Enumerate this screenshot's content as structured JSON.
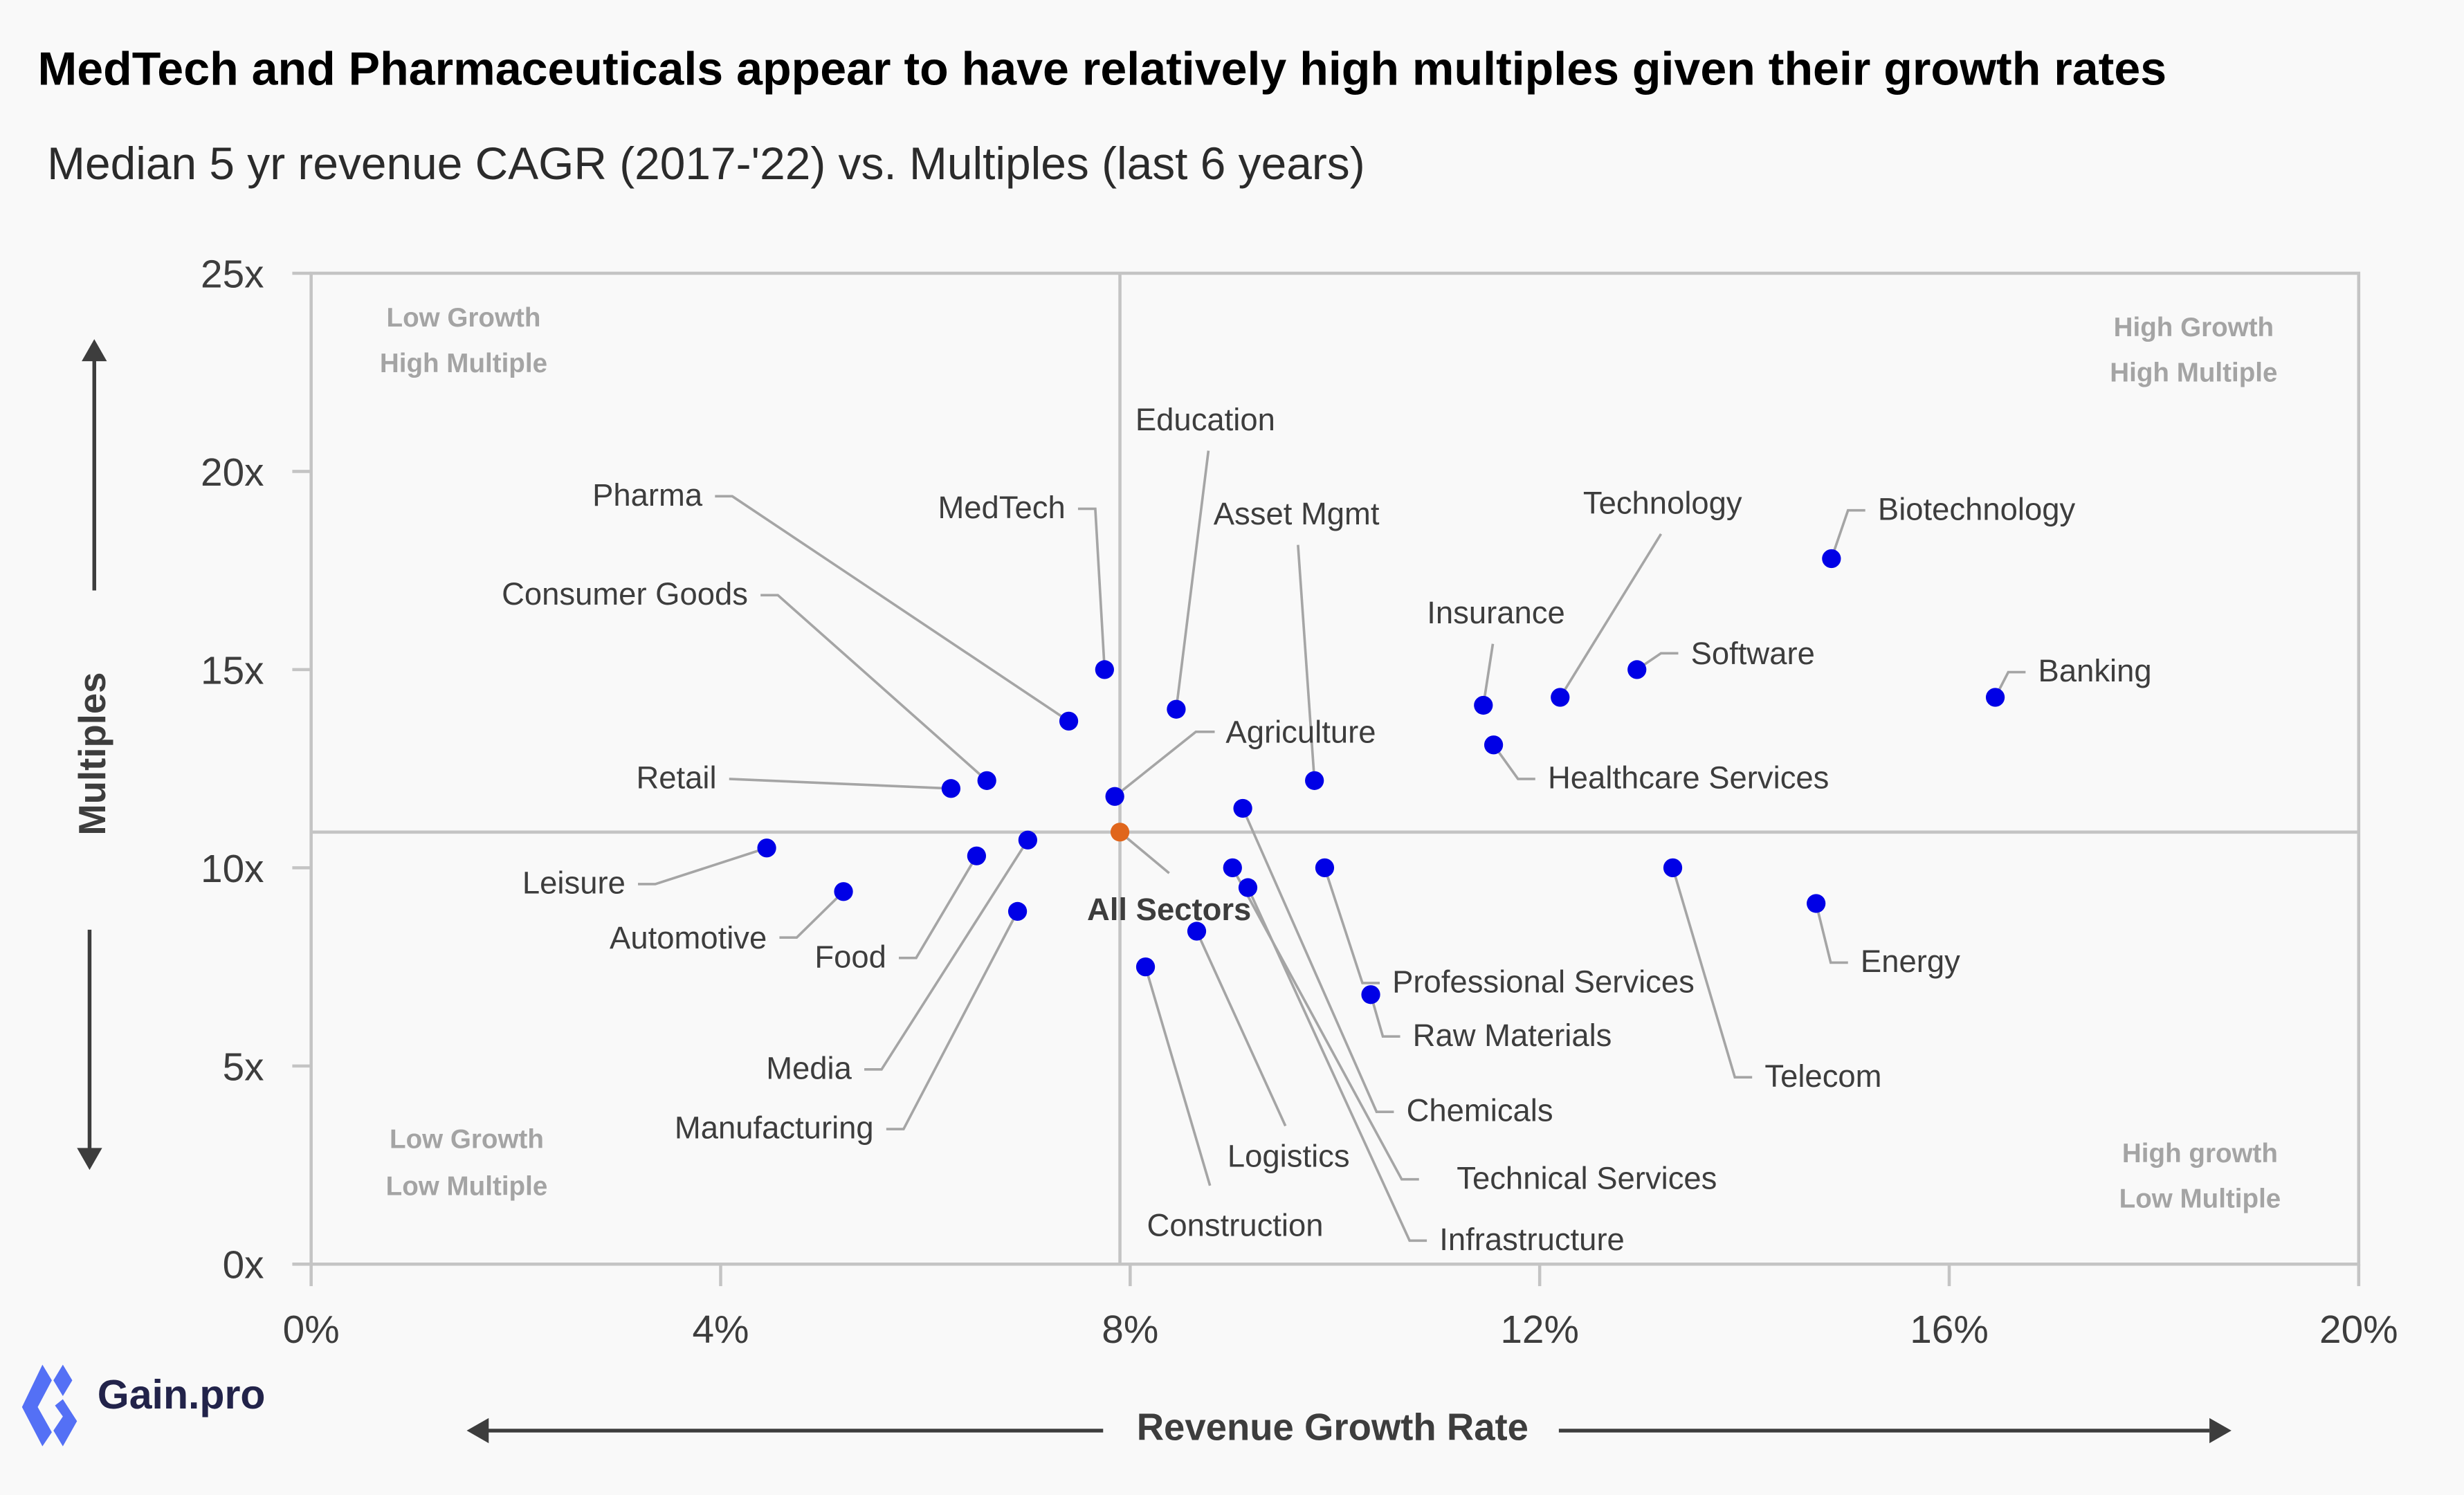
{
  "header": {
    "title": "MedTech and Pharmaceuticals appear to have relatively high multiples given their growth rates",
    "subtitle": "Median 5 yr revenue CAGR (2017-'22) vs. Multiples (last 6 years)"
  },
  "brand": {
    "logo_icon": "gain-pro-logo-icon",
    "name": "Gain.pro",
    "logo_color": "#5470f5",
    "text_color": "#22234a"
  },
  "colors": {
    "point": "#0000e6",
    "reference_point": "#e0661c",
    "gridline": "#c4c4c4",
    "leader_line": "#a5a5a5",
    "quadrant_label": "#a4a4a4",
    "text": "#3d3d3d"
  },
  "chart_data": {
    "type": "scatter",
    "title": "MedTech and Pharmaceuticals appear to have relatively high multiples given their growth rates",
    "subtitle": "Median 5 yr revenue CAGR (2017-'22) vs. Multiples (last 6 years)",
    "xlabel": "Revenue Growth Rate",
    "ylabel": "Multiples",
    "xlim": [
      0,
      20
    ],
    "ylim": [
      0,
      25
    ],
    "x_ticks": [
      0,
      4,
      8,
      12,
      16,
      20
    ],
    "x_tick_labels": [
      "0%",
      "4%",
      "8%",
      "12%",
      "16%",
      "20%"
    ],
    "y_ticks": [
      0,
      5,
      10,
      15,
      20,
      25
    ],
    "y_tick_labels": [
      "0x",
      "5x",
      "10x",
      "15x",
      "20x",
      "25x"
    ],
    "grid": false,
    "reference_lines": {
      "x": 7.9,
      "y": 10.9
    },
    "quadrant_labels": {
      "top_left": [
        "Low Growth",
        "High Multiple"
      ],
      "top_right": [
        "High Growth",
        "High Multiple"
      ],
      "bottom_left": [
        "Low Growth",
        "Low Multiple"
      ],
      "bottom_right": [
        "High growth",
        "Low Multiple"
      ]
    },
    "reference_point": {
      "name": "All Sectors",
      "x": 7.9,
      "y": 10.9
    },
    "points": [
      {
        "name": "MedTech",
        "x": 7.75,
        "y": 15.0
      },
      {
        "name": "Pharma",
        "x": 7.4,
        "y": 13.7
      },
      {
        "name": "Education",
        "x": 8.45,
        "y": 14.0
      },
      {
        "name": "Asset Mgmt",
        "x": 9.8,
        "y": 12.2
      },
      {
        "name": "Agriculture",
        "x": 7.85,
        "y": 11.8
      },
      {
        "name": "Consumer Goods",
        "x": 6.6,
        "y": 12.2
      },
      {
        "name": "Retail",
        "x": 6.25,
        "y": 12.0
      },
      {
        "name": "Leisure",
        "x": 4.45,
        "y": 10.5
      },
      {
        "name": "Automotive",
        "x": 5.2,
        "y": 9.4
      },
      {
        "name": "Food",
        "x": 6.5,
        "y": 10.3
      },
      {
        "name": "Media",
        "x": 7.0,
        "y": 10.7
      },
      {
        "name": "Manufacturing",
        "x": 6.9,
        "y": 8.9
      },
      {
        "name": "Construction",
        "x": 8.15,
        "y": 7.5
      },
      {
        "name": "Logistics",
        "x": 8.65,
        "y": 8.4
      },
      {
        "name": "Chemicals",
        "x": 9.1,
        "y": 11.5
      },
      {
        "name": "Technical Services",
        "x": 9.0,
        "y": 10.0
      },
      {
        "name": "Infrastructure",
        "x": 9.15,
        "y": 9.5
      },
      {
        "name": "Professional Services",
        "x": 9.9,
        "y": 10.0
      },
      {
        "name": "Raw Materials",
        "x": 10.35,
        "y": 6.8
      },
      {
        "name": "Insurance",
        "x": 11.45,
        "y": 14.1
      },
      {
        "name": "Healthcare Services",
        "x": 11.55,
        "y": 13.1
      },
      {
        "name": "Technology",
        "x": 12.2,
        "y": 14.3
      },
      {
        "name": "Software",
        "x": 12.95,
        "y": 15.0
      },
      {
        "name": "Biotechnology",
        "x": 14.85,
        "y": 17.8
      },
      {
        "name": "Banking",
        "x": 16.45,
        "y": 14.3
      },
      {
        "name": "Telecom",
        "x": 13.3,
        "y": 10.0
      },
      {
        "name": "Energy",
        "x": 14.7,
        "y": 9.1
      }
    ]
  }
}
